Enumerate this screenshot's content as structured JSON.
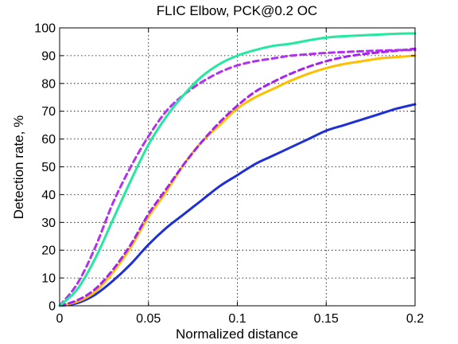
{
  "chart_data": {
    "type": "line",
    "title": "FLIC Elbow, PCK@0.2 OC",
    "xlabel": "Normalized distance",
    "ylabel": "Detection rate, %",
    "xlim": [
      0,
      0.2
    ],
    "ylim": [
      0,
      100
    ],
    "grid": true,
    "x_ticks": [
      0,
      0.05,
      0.1,
      0.15,
      0.2
    ],
    "x_tick_labels": [
      "0",
      "0.05",
      "0.1",
      "0.15",
      "0.2"
    ],
    "y_ticks": [
      0,
      10,
      20,
      30,
      40,
      50,
      60,
      70,
      80,
      90,
      100
    ],
    "y_tick_labels": [
      "0",
      "10",
      "20",
      "30",
      "40",
      "50",
      "60",
      "70",
      "80",
      "90",
      "100"
    ],
    "series": [
      {
        "color": "#1f2fd6",
        "dashed": false,
        "x": [
          0,
          0.01,
          0.02,
          0.03,
          0.04,
          0.05,
          0.06,
          0.07,
          0.08,
          0.09,
          0.1,
          0.11,
          0.12,
          0.13,
          0.14,
          0.15,
          0.16,
          0.17,
          0.18,
          0.19,
          0.2
        ],
        "y": [
          0,
          1,
          4,
          9,
          15,
          22,
          28,
          33,
          38,
          43,
          47,
          51,
          54,
          57,
          60,
          63,
          65,
          67,
          69,
          71,
          72.5
        ]
      },
      {
        "color": "#ffbf00",
        "dashed": false,
        "x": [
          0,
          0.01,
          0.02,
          0.03,
          0.04,
          0.05,
          0.06,
          0.07,
          0.08,
          0.09,
          0.1,
          0.11,
          0.12,
          0.13,
          0.14,
          0.15,
          0.16,
          0.17,
          0.18,
          0.19,
          0.2
        ],
        "y": [
          0,
          1.5,
          5,
          12,
          21,
          32,
          41,
          51,
          59,
          65,
          71,
          75,
          78,
          81,
          83.5,
          85.5,
          87,
          88,
          89,
          89.5,
          90
        ]
      },
      {
        "color": "#a621f0",
        "dashed": true,
        "x": [
          0,
          0.01,
          0.02,
          0.03,
          0.04,
          0.05,
          0.06,
          0.07,
          0.08,
          0.09,
          0.1,
          0.11,
          0.12,
          0.13,
          0.14,
          0.15,
          0.16,
          0.17,
          0.18,
          0.19,
          0.2
        ],
        "y": [
          0,
          2,
          6,
          13,
          22,
          33,
          42,
          51,
          59,
          66,
          72,
          77,
          80.5,
          83.5,
          86,
          88,
          89.5,
          90.5,
          91.2,
          91.8,
          92.5
        ]
      },
      {
        "color": "#b430f0",
        "dashed": true,
        "x": [
          0,
          0.01,
          0.02,
          0.03,
          0.04,
          0.05,
          0.06,
          0.07,
          0.08,
          0.09,
          0.1,
          0.11,
          0.12,
          0.13,
          0.14,
          0.15,
          0.16,
          0.17,
          0.18,
          0.19,
          0.2
        ],
        "y": [
          0,
          8,
          21,
          37,
          50,
          61,
          70,
          76,
          80.5,
          84,
          86.5,
          88,
          89,
          90,
          90.5,
          91,
          91.3,
          91.6,
          91.8,
          92,
          92
        ]
      },
      {
        "color": "#22e8a0",
        "dashed": false,
        "x": [
          0,
          0.01,
          0.02,
          0.03,
          0.04,
          0.05,
          0.06,
          0.07,
          0.08,
          0.09,
          0.1,
          0.11,
          0.12,
          0.13,
          0.14,
          0.15,
          0.16,
          0.17,
          0.18,
          0.19,
          0.2
        ],
        "y": [
          0,
          6,
          17,
          31,
          45,
          58,
          68,
          76,
          82.5,
          87,
          90,
          92,
          93.5,
          94.3,
          95.5,
          96.5,
          97,
          97.3,
          97.6,
          97.9,
          98
        ]
      }
    ]
  }
}
